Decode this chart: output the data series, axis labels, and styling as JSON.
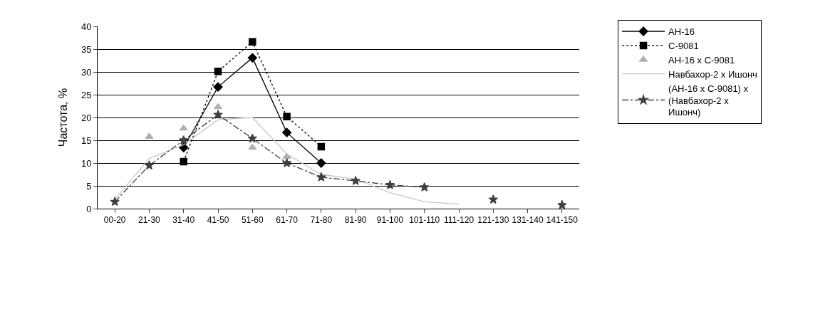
{
  "chart_data": {
    "type": "line",
    "ylabel": "Частота, %",
    "categories": [
      "00-20",
      "21-30",
      "31-40",
      "41-50",
      "51-60",
      "61-70",
      "71-80",
      "81-90",
      "91-100",
      "101-110",
      "111-120",
      "121-130",
      "131-140",
      "141-150"
    ],
    "series": [
      {
        "name": "АН-16",
        "color": "#000000",
        "marker": "diamond",
        "line_style": "solid",
        "values": [
          null,
          null,
          13.4,
          26.7,
          33.1,
          16.7,
          10,
          null,
          null,
          null,
          null,
          null,
          null,
          null
        ]
      },
      {
        "name": "С-9081",
        "color": "#000000",
        "marker": "square",
        "line_style": "dotted",
        "values": [
          null,
          null,
          10.3,
          30.1,
          36.6,
          20.2,
          13.6,
          null,
          null,
          null,
          null,
          null,
          null,
          null
        ]
      },
      {
        "name": "АН-16 x С-9081",
        "type": "scatter",
        "color": "#b0b0b0",
        "marker": "triangle",
        "values": [
          null,
          15.8,
          17.6,
          22.3,
          13.4,
          11.4,
          null,
          null,
          null,
          null,
          null,
          null,
          null,
          null
        ]
      },
      {
        "name": "Навбахор-2 x Ишонч",
        "color": "#c8c8c8",
        "marker": "none",
        "line_style": "solid",
        "values": [
          2,
          11,
          14,
          19.5,
          20,
          12,
          7.5,
          6.5,
          3.5,
          1.5,
          1,
          null,
          null,
          null
        ]
      },
      {
        "name": "(АН-16 x С-9081) x (Навбахор-2 x Ишонч)",
        "color": "#404040",
        "marker": "star",
        "line_style": "dashed",
        "values": [
          1.5,
          9.5,
          15,
          20.6,
          15.4,
          10,
          6.9,
          6.1,
          5.2,
          4.7,
          null,
          2,
          null,
          0.8
        ]
      }
    ],
    "ylim": [
      0,
      40
    ],
    "yticks": [
      0,
      5,
      10,
      15,
      20,
      25,
      30,
      35,
      40
    ],
    "grid": "y",
    "legend": "right"
  }
}
